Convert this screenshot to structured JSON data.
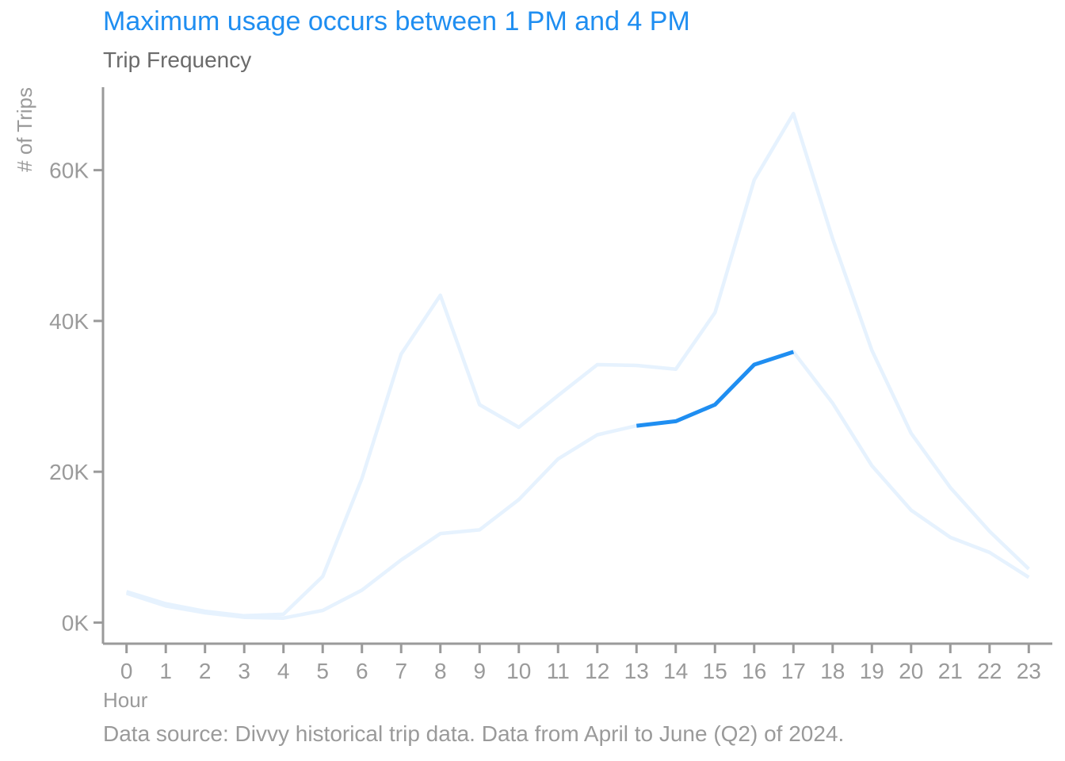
{
  "title": "Maximum usage occurs between 1 PM and 4 PM",
  "subtitle": "Trip Frequency",
  "caption": "Data source: Divvy historical trip data. Data from April to June (Q2) of 2024.",
  "colors": {
    "highlight": "#1f8ef1",
    "faded": "#e6f2fe",
    "axis": "#9a9a9a"
  },
  "chart_data": {
    "type": "line",
    "title": "Maximum usage occurs between 1 PM and 4 PM",
    "subtitle": "Trip Frequency",
    "xlabel": "Hour",
    "ylabel": "# of Trips",
    "x": [
      0,
      1,
      2,
      3,
      4,
      5,
      6,
      7,
      8,
      9,
      10,
      11,
      12,
      13,
      14,
      15,
      16,
      17,
      18,
      19,
      20,
      21,
      22,
      23
    ],
    "x_tick_labels": [
      "0",
      "1",
      "2",
      "3",
      "4",
      "5",
      "6",
      "7",
      "8",
      "9",
      "10",
      "11",
      "12",
      "13",
      "14",
      "15",
      "16",
      "17",
      "18",
      "19",
      "20",
      "21",
      "22",
      "23"
    ],
    "y_ticks": [
      0,
      20000,
      40000,
      60000
    ],
    "y_tick_labels": [
      "0K",
      "20K",
      "40K",
      "60K"
    ],
    "ylim": [
      -2800,
      71000
    ],
    "xlim": [
      -0.6,
      23.6
    ],
    "grid": false,
    "series": [
      {
        "values": [
          3900,
          2200,
          1300,
          700,
          600,
          1600,
          4300,
          8300,
          11800,
          12300,
          16300,
          21700,
          24900,
          26100,
          26700,
          28900,
          34200,
          35900,
          29100,
          20800,
          14900,
          11300,
          9300,
          6000
        ],
        "highlight_range": [
          13,
          17
        ]
      },
      {
        "values": [
          4100,
          2500,
          1500,
          900,
          1100,
          6100,
          19100,
          35600,
          43400,
          28900,
          25900,
          30100,
          34200,
          34100,
          33600,
          41100,
          58700,
          67500,
          50900,
          36100,
          25100,
          17900,
          12100,
          7100
        ]
      }
    ]
  }
}
